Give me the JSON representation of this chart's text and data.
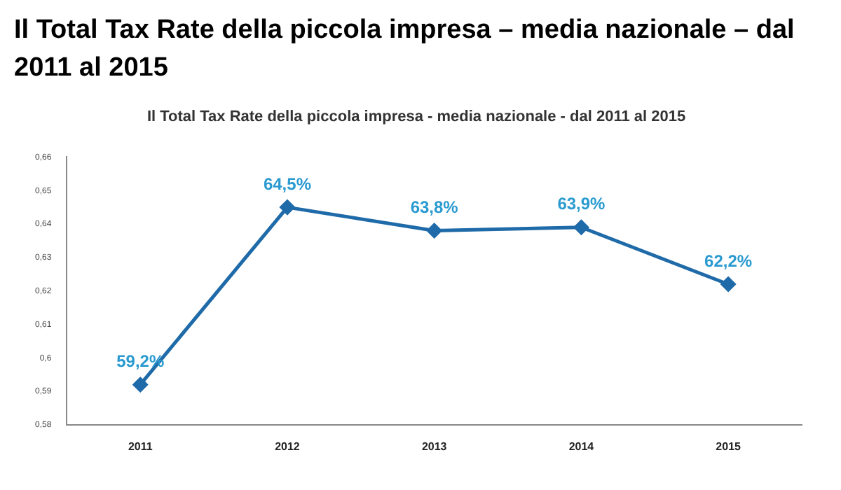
{
  "chart_data": {
    "type": "line",
    "title": "Il Total Tax Rate della piccola impresa – media nazionale – dal 2011 al 2015",
    "subtitle": "Il Total Tax Rate della piccola impresa - media nazionale - dal 2011 al 2015",
    "categories": [
      "2011",
      "2012",
      "2013",
      "2014",
      "2015"
    ],
    "series": [
      {
        "color": "#1f6aa8",
        "values": [
          0.592,
          0.645,
          0.638,
          0.639,
          0.622
        ],
        "value_labels": [
          "59,2%",
          "64,5%",
          "63,8%",
          "63,9%",
          "62,2%"
        ]
      }
    ],
    "ylim": [
      0.58,
      0.66
    ],
    "yticks": [
      {
        "value": 0.58,
        "label": "0,58"
      },
      {
        "value": 0.59,
        "label": "0,59"
      },
      {
        "value": 0.6,
        "label": "0,6"
      },
      {
        "value": 0.61,
        "label": "0,61"
      },
      {
        "value": 0.62,
        "label": "0,62"
      },
      {
        "value": 0.63,
        "label": "0,63"
      },
      {
        "value": 0.64,
        "label": "0,64"
      },
      {
        "value": 0.65,
        "label": "0,65"
      },
      {
        "value": 0.66,
        "label": "0,66"
      }
    ],
    "marker": "diamond",
    "grid": false,
    "legend": false
  }
}
